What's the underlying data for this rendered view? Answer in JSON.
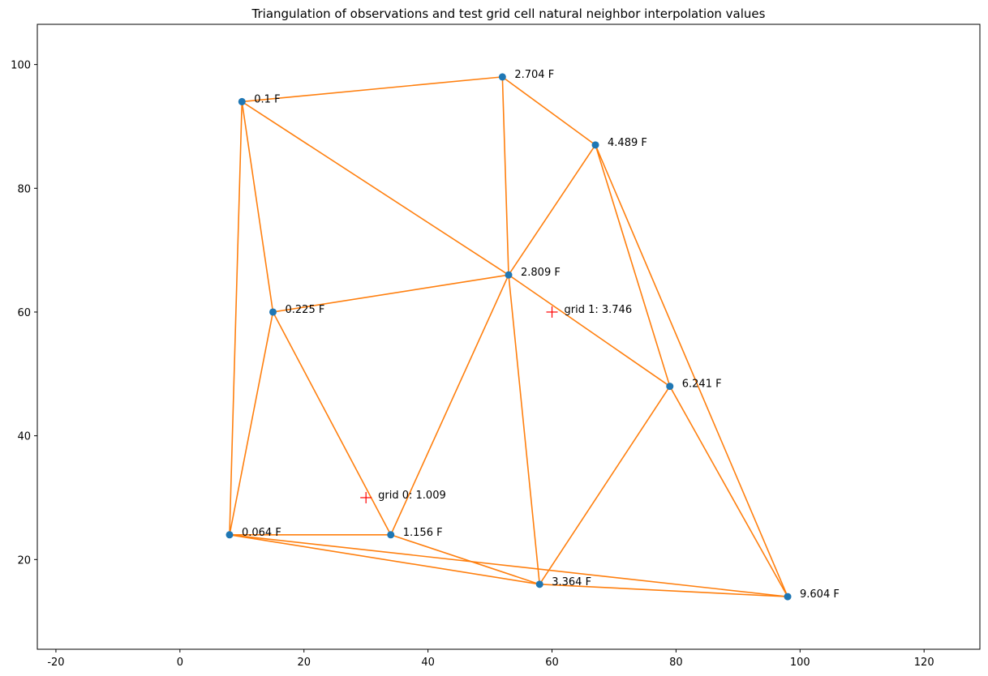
{
  "chart_data": {
    "type": "scatter",
    "title": "Triangulation of observations and test grid cell natural neighbor interpolation values",
    "xlabel": "",
    "ylabel": "",
    "xlim": [
      -23,
      129
    ],
    "ylim": [
      5.5,
      106.5
    ],
    "xticks": [
      -20,
      0,
      20,
      40,
      60,
      80,
      100,
      120
    ],
    "yticks": [
      20,
      40,
      60,
      80,
      100
    ],
    "grid": false,
    "colors": {
      "points": "#1f77b4",
      "edges": "#ff7f0e",
      "grid_markers": "#ff0000"
    },
    "observations": [
      {
        "x": 8,
        "y": 24,
        "label": "0.064 F"
      },
      {
        "x": 10,
        "y": 94,
        "label": "0.1 F"
      },
      {
        "x": 15,
        "y": 60,
        "label": "0.225 F"
      },
      {
        "x": 34,
        "y": 24,
        "label": "1.156 F"
      },
      {
        "x": 52,
        "y": 98,
        "label": "2.704 F"
      },
      {
        "x": 53,
        "y": 66,
        "label": "2.809 F"
      },
      {
        "x": 58,
        "y": 16,
        "label": "3.364 F"
      },
      {
        "x": 67,
        "y": 87,
        "label": "4.489 F"
      },
      {
        "x": 79,
        "y": 48,
        "label": "6.241 F"
      },
      {
        "x": 98,
        "y": 14,
        "label": "9.604 F"
      }
    ],
    "triangles": [
      [
        1,
        4,
        5
      ],
      [
        4,
        7,
        5
      ],
      [
        1,
        5,
        2
      ],
      [
        1,
        2,
        0
      ],
      [
        2,
        3,
        0
      ],
      [
        2,
        5,
        3
      ],
      [
        3,
        5,
        6
      ],
      [
        0,
        3,
        6
      ],
      [
        5,
        8,
        6
      ],
      [
        5,
        7,
        8
      ],
      [
        7,
        9,
        8
      ],
      [
        6,
        8,
        9
      ],
      [
        0,
        6,
        9
      ]
    ],
    "grid_cells": [
      {
        "x": 30,
        "y": 30,
        "label": "grid 0: 1.009"
      },
      {
        "x": 60,
        "y": 60,
        "label": "grid 1: 3.746"
      }
    ]
  }
}
